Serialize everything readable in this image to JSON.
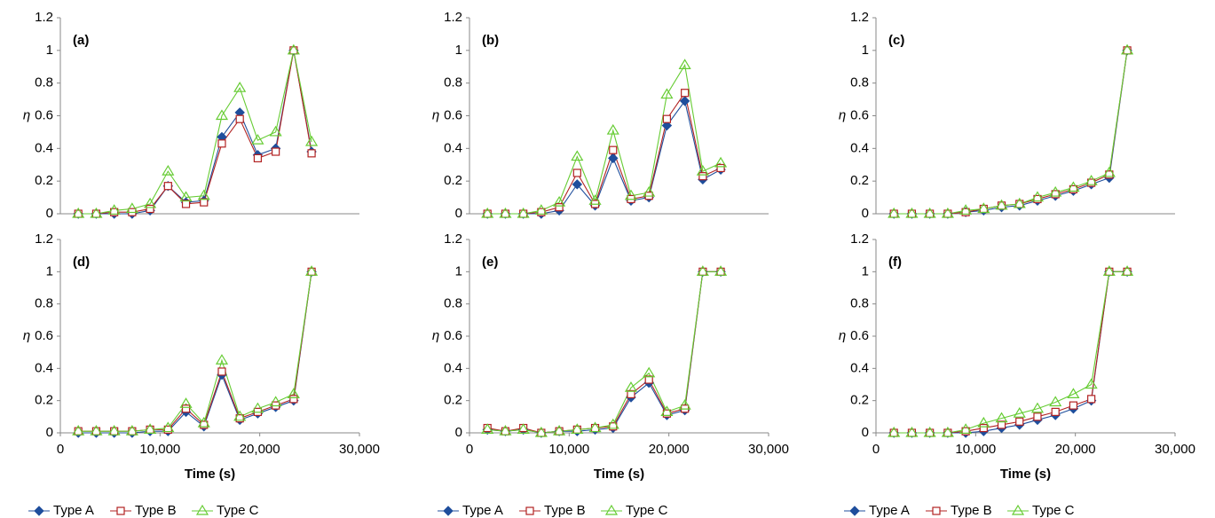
{
  "chart_data": [
    {
      "type": "line",
      "label": "(a)",
      "ylabel": "η",
      "ylim": [
        0,
        1.2
      ],
      "yticks": [
        0,
        0.2,
        0.4,
        0.6,
        0.8,
        1,
        1.2
      ],
      "xlim": [
        0,
        30000
      ],
      "x": [
        1800,
        3600,
        5400,
        7200,
        9000,
        10800,
        12600,
        14400,
        16200,
        18000,
        19800,
        21600,
        23400,
        25200
      ],
      "series": [
        {
          "color": "#1f4e9c",
          "marker": "diamond",
          "values": [
            0,
            0,
            0,
            0,
            0.02,
            0.17,
            0.07,
            0.08,
            0.47,
            0.62,
            0.36,
            0.4,
            1.0,
            0.38
          ]
        },
        {
          "color": "#b22222",
          "marker": "square",
          "values": [
            0,
            0,
            0.01,
            0.01,
            0.03,
            0.17,
            0.06,
            0.07,
            0.43,
            0.58,
            0.34,
            0.38,
            1.0,
            0.37
          ]
        },
        {
          "color": "#66cc33",
          "marker": "triangle",
          "values": [
            0,
            0,
            0.02,
            0.03,
            0.06,
            0.26,
            0.1,
            0.11,
            0.6,
            0.77,
            0.45,
            0.5,
            1.0,
            0.44
          ]
        }
      ]
    },
    {
      "type": "line",
      "label": "(b)",
      "ylabel": "η",
      "ylim": [
        0,
        1.2
      ],
      "yticks": [
        0,
        0.2,
        0.4,
        0.6,
        0.8,
        1,
        1.2
      ],
      "xlim": [
        0,
        30000
      ],
      "x": [
        1800,
        3600,
        5400,
        7200,
        9000,
        10800,
        12600,
        14400,
        16200,
        18000,
        19800,
        21600,
        23400,
        25200
      ],
      "series": [
        {
          "color": "#1f4e9c",
          "marker": "diamond",
          "values": [
            0,
            0,
            0,
            0,
            0.02,
            0.18,
            0.05,
            0.34,
            0.08,
            0.1,
            0.54,
            0.69,
            0.21,
            0.27
          ]
        },
        {
          "color": "#b22222",
          "marker": "square",
          "values": [
            0,
            0,
            0,
            0.01,
            0.04,
            0.25,
            0.06,
            0.39,
            0.09,
            0.11,
            0.58,
            0.74,
            0.23,
            0.28
          ]
        },
        {
          "color": "#66cc33",
          "marker": "triangle",
          "values": [
            0,
            0,
            0,
            0.02,
            0.07,
            0.35,
            0.08,
            0.51,
            0.11,
            0.13,
            0.73,
            0.91,
            0.26,
            0.31
          ]
        }
      ]
    },
    {
      "type": "line",
      "label": "(c)",
      "ylabel": "η",
      "ylim": [
        0,
        1.2
      ],
      "yticks": [
        0,
        0.2,
        0.4,
        0.6,
        0.8,
        1,
        1.2
      ],
      "xlim": [
        0,
        30000
      ],
      "x": [
        1800,
        3600,
        5400,
        7200,
        9000,
        10800,
        12600,
        14400,
        16200,
        18000,
        19800,
        21600,
        23400,
        25200
      ],
      "series": [
        {
          "color": "#1f4e9c",
          "marker": "diamond",
          "values": [
            0,
            0,
            0,
            0,
            0.01,
            0.02,
            0.04,
            0.05,
            0.08,
            0.11,
            0.14,
            0.18,
            0.22,
            1.0
          ]
        },
        {
          "color": "#b22222",
          "marker": "square",
          "values": [
            0,
            0,
            0,
            0,
            0.01,
            0.03,
            0.05,
            0.06,
            0.09,
            0.12,
            0.15,
            0.19,
            0.24,
            1.0
          ]
        },
        {
          "color": "#66cc33",
          "marker": "triangle",
          "values": [
            0,
            0,
            0,
            0,
            0.02,
            0.03,
            0.05,
            0.06,
            0.1,
            0.13,
            0.16,
            0.2,
            0.25,
            1.0
          ]
        }
      ]
    },
    {
      "type": "line",
      "label": "(d)",
      "ylabel": "η",
      "xlabel": "Time (s)",
      "legend": "bottom",
      "ylim": [
        0,
        1.2
      ],
      "yticks": [
        0,
        0.2,
        0.4,
        0.6,
        0.8,
        1,
        1.2
      ],
      "xlim": [
        0,
        30000
      ],
      "xticks": [
        0,
        {
          "value": 10000,
          "label": "10,000"
        },
        {
          "value": 20000,
          "label": "20,000"
        },
        {
          "value": 30000,
          "label": "30,000"
        }
      ],
      "x": [
        1800,
        3600,
        5400,
        7200,
        9000,
        10800,
        12600,
        14400,
        16200,
        18000,
        19800,
        21600,
        23400,
        25200
      ],
      "series": [
        {
          "name": "Type A",
          "color": "#1f4e9c",
          "marker": "diamond",
          "values": [
            0,
            0,
            0,
            0,
            0.01,
            0.01,
            0.13,
            0.04,
            0.36,
            0.08,
            0.12,
            0.16,
            0.2,
            1.0
          ]
        },
        {
          "name": "Type B",
          "color": "#b22222",
          "marker": "square",
          "values": [
            0.01,
            0.01,
            0.01,
            0.01,
            0.02,
            0.02,
            0.15,
            0.05,
            0.38,
            0.09,
            0.13,
            0.17,
            0.21,
            1.0
          ]
        },
        {
          "name": "Type C",
          "color": "#66cc33",
          "marker": "triangle",
          "values": [
            0.01,
            0.01,
            0.01,
            0.01,
            0.02,
            0.03,
            0.18,
            0.06,
            0.45,
            0.1,
            0.15,
            0.19,
            0.24,
            1.0
          ]
        }
      ]
    },
    {
      "type": "line",
      "label": "(e)",
      "ylabel": "η",
      "xlabel": "Time (s)",
      "legend": "bottom",
      "ylim": [
        0,
        1.2
      ],
      "yticks": [
        0,
        0.2,
        0.4,
        0.6,
        0.8,
        1,
        1.2
      ],
      "xlim": [
        0,
        30000
      ],
      "xticks": [
        0,
        {
          "value": 10000,
          "label": "10,000"
        },
        {
          "value": 20000,
          "label": "20,000"
        },
        {
          "value": 30000,
          "label": "30,000"
        }
      ],
      "x": [
        1800,
        3600,
        5400,
        7200,
        9000,
        10800,
        12600,
        14400,
        16200,
        18000,
        19800,
        21600,
        23400,
        25200
      ],
      "series": [
        {
          "name": "Type A",
          "color": "#1f4e9c",
          "marker": "diamond",
          "values": [
            0.02,
            0.01,
            0.02,
            0,
            0.01,
            0.01,
            0.02,
            0.03,
            0.22,
            0.31,
            0.11,
            0.14,
            1.0,
            1.0
          ]
        },
        {
          "name": "Type B",
          "color": "#b22222",
          "marker": "square",
          "values": [
            0.03,
            0.01,
            0.03,
            0,
            0.01,
            0.02,
            0.03,
            0.04,
            0.24,
            0.33,
            0.12,
            0.15,
            1.0,
            1.0
          ]
        },
        {
          "name": "Type C",
          "color": "#66cc33",
          "marker": "triangle",
          "values": [
            0.02,
            0.01,
            0.02,
            0,
            0.01,
            0.02,
            0.03,
            0.05,
            0.28,
            0.37,
            0.13,
            0.17,
            1.0,
            1.0
          ]
        }
      ]
    },
    {
      "type": "line",
      "label": "(f)",
      "ylabel": "η",
      "xlabel": "Time (s)",
      "legend": "bottom",
      "ylim": [
        0,
        1.2
      ],
      "yticks": [
        0,
        0.2,
        0.4,
        0.6,
        0.8,
        1,
        1.2
      ],
      "xlim": [
        0,
        30000
      ],
      "xticks": [
        0,
        {
          "value": 10000,
          "label": "10,000"
        },
        {
          "value": 20000,
          "label": "20,000"
        },
        {
          "value": 30000,
          "label": "30,000"
        }
      ],
      "x": [
        1800,
        3600,
        5400,
        7200,
        9000,
        10800,
        12600,
        14400,
        16200,
        18000,
        19800,
        21600,
        23400,
        25200
      ],
      "series": [
        {
          "name": "Type A",
          "color": "#1f4e9c",
          "marker": "diamond",
          "values": [
            0,
            0,
            0,
            0,
            0,
            0.01,
            0.03,
            0.05,
            0.08,
            0.11,
            0.15,
            0.2,
            1.0,
            1.0
          ]
        },
        {
          "name": "Type B",
          "color": "#b22222",
          "marker": "square",
          "values": [
            0,
            0,
            0,
            0,
            0.01,
            0.03,
            0.05,
            0.07,
            0.1,
            0.13,
            0.17,
            0.21,
            1.0,
            1.0
          ]
        },
        {
          "name": "Type C",
          "color": "#66cc33",
          "marker": "triangle",
          "values": [
            0,
            0,
            0,
            0,
            0.02,
            0.06,
            0.09,
            0.12,
            0.15,
            0.19,
            0.24,
            0.3,
            1.0,
            1.0
          ]
        }
      ]
    }
  ]
}
